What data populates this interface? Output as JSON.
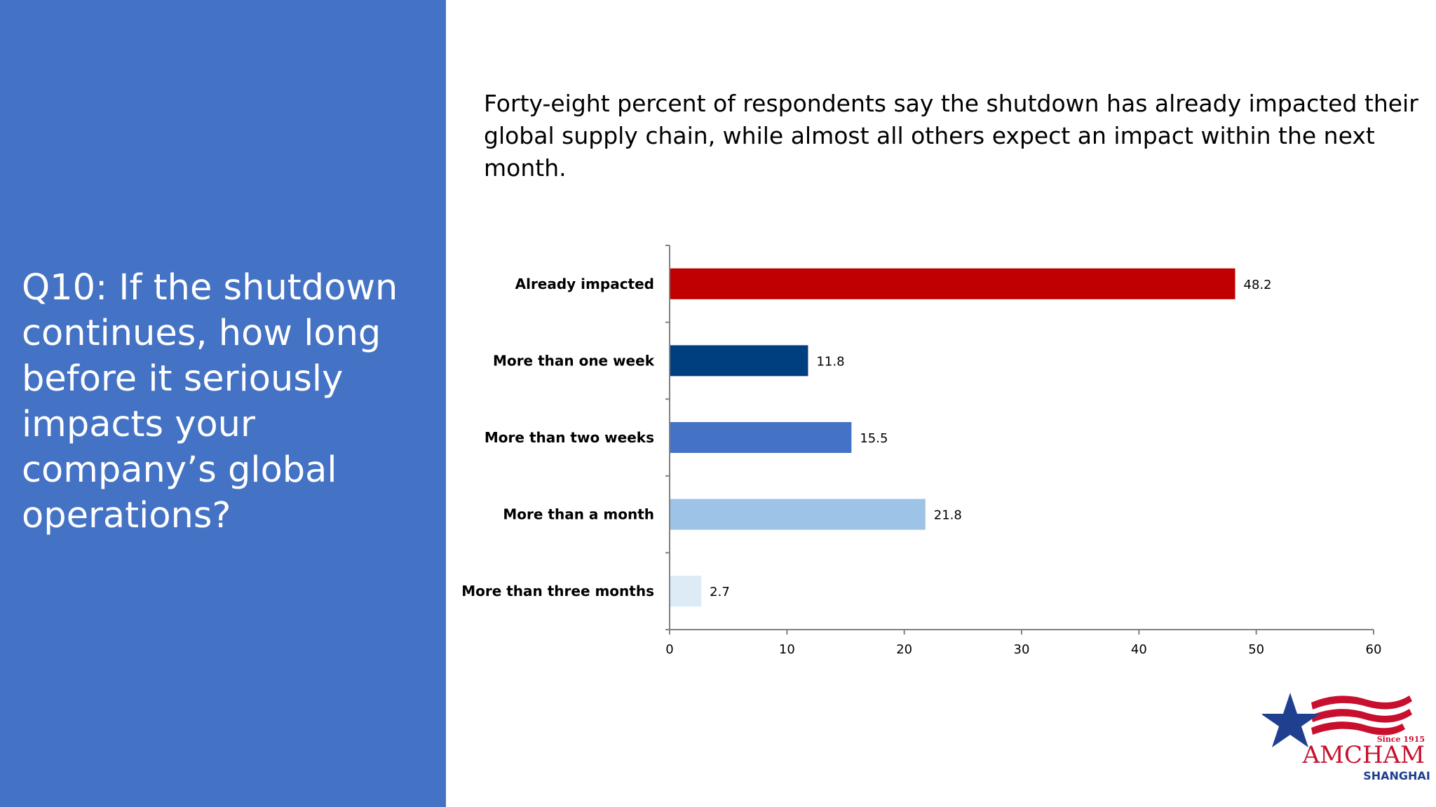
{
  "question": "Q10: If the shutdown\ncontinues, how long\nbefore it seriously\nimpacts your\ncompany’s global\noperations?",
  "headline": "Forty-eight percent of respondents say the shutdown has already impacted their\nglobal supply chain, while almost all others expect an impact within the next month.",
  "colors": {
    "panel": "#4472c4",
    "already_impacted": "#c00000",
    "more_than_one_week": "#003f7f",
    "more_than_two_weeks": "#4472c4",
    "more_than_a_month": "#9dc3e6",
    "more_than_three_months": "#ddebf7"
  },
  "chart_data": {
    "type": "bar",
    "orientation": "horizontal",
    "categories": [
      "Already impacted",
      "More than one week",
      "More than two weeks",
      "More than a month",
      "More than three months"
    ],
    "values": [
      48.2,
      11.8,
      15.5,
      21.8,
      2.7
    ],
    "value_labels": [
      "48.2",
      "11.8",
      "15.5",
      "21.8",
      "2.7"
    ],
    "bar_colors": [
      "#c00000",
      "#003f7f",
      "#4472c4",
      "#9dc3e6",
      "#ddebf7"
    ],
    "xlim": [
      0,
      60
    ],
    "xticks": [
      0,
      10,
      20,
      30,
      40,
      50,
      60
    ],
    "grid": false,
    "legend": "none"
  },
  "logo": {
    "since": "Since 1915",
    "name": "AMCHAM",
    "city": "SHANGHAI"
  }
}
